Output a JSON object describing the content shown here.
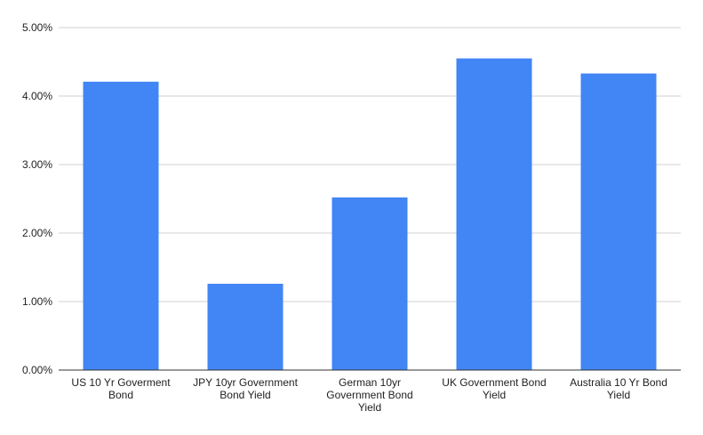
{
  "chart_data": {
    "type": "bar",
    "title": "",
    "xlabel": "",
    "ylabel": "",
    "categories": [
      [
        "US 10 Yr Goverment",
        "Bond"
      ],
      [
        "JPY 10yr Government",
        "Bond Yield"
      ],
      [
        "German 10yr",
        "Government Bond",
        "Yield"
      ],
      [
        "UK Government Bond",
        "Yield"
      ],
      [
        "Australia 10 Yr Bond",
        "Yield"
      ]
    ],
    "values": [
      4.21,
      1.26,
      2.52,
      4.55,
      4.33
    ],
    "ylim": [
      0,
      5
    ],
    "yticks": [
      "0.00%",
      "1.00%",
      "2.00%",
      "3.00%",
      "4.00%",
      "5.00%"
    ],
    "grid": true,
    "legend": "none",
    "colors": {
      "bar": "#4285f4",
      "grid": "#d0d0d0",
      "axis": "#333333"
    }
  }
}
